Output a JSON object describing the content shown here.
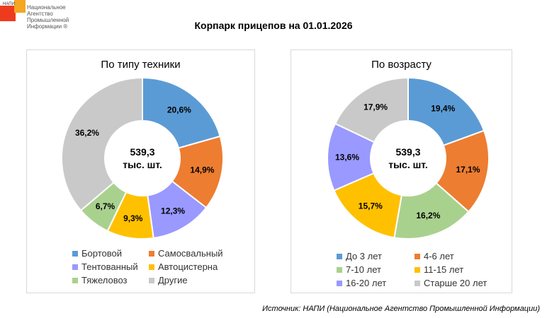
{
  "logo": {
    "tag": "НАПИ",
    "text": "Национальное Агентство Промышленной Информации ®"
  },
  "title": "Корпарк прицепов на 01.01.2026",
  "chart_data": [
    {
      "type": "pie",
      "title": "По типу техники",
      "center_label": [
        "539,3",
        "тыс. шт."
      ],
      "categories": [
        "Бортовой",
        "Самосвальный",
        "Тентованный",
        "Автоцистерна",
        "Тяжеловоз",
        "Другие"
      ],
      "values": [
        20.6,
        14.9,
        12.3,
        9.3,
        6.7,
        36.2
      ],
      "labels": [
        "20,6%",
        "14,9%",
        "12,3%",
        "9,3%",
        "6,7%",
        "36,2%"
      ],
      "colors": [
        "#5B9BD5",
        "#ED7D31",
        "#9999FF",
        "#FFC000",
        "#A9D18E",
        "#C9C9C9"
      ],
      "legend_order": [
        0,
        1,
        2,
        3,
        4,
        5
      ]
    },
    {
      "type": "pie",
      "title": "По возрасту",
      "center_label": [
        "539,3",
        "тыс. шт."
      ],
      "categories": [
        "До 3 лет",
        "4-6 лет",
        "7-10 лет",
        "11-15 лет",
        "16-20 лет",
        "Старше 20 лет"
      ],
      "values": [
        19.4,
        17.1,
        16.2,
        15.7,
        13.6,
        17.9
      ],
      "labels": [
        "19,4%",
        "17,1%",
        "16,2%",
        "15,7%",
        "13,6%",
        "17,9%"
      ],
      "colors": [
        "#5B9BD5",
        "#ED7D31",
        "#A9D18E",
        "#FFC000",
        "#9999FF",
        "#C9C9C9"
      ],
      "legend_order": [
        0,
        1,
        2,
        3,
        4,
        5
      ]
    }
  ],
  "source": "Источник: НАПИ (Национальное Агентство Промышленной Информации)"
}
